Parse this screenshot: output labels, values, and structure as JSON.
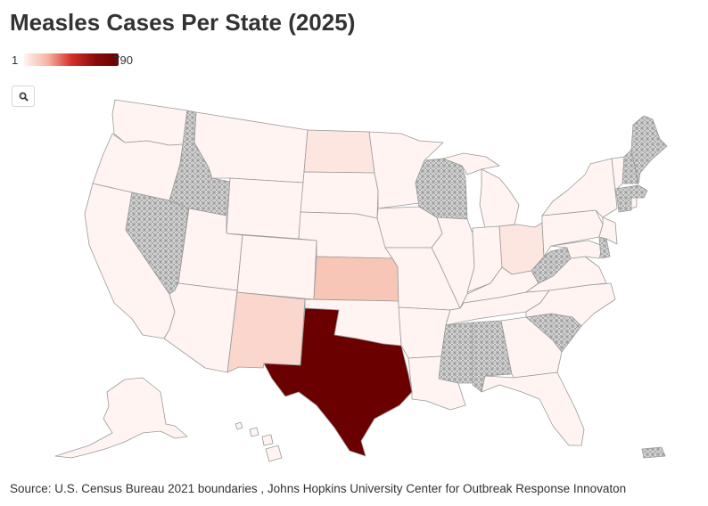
{
  "title": "Measles Cases Per State (2025)",
  "legend": {
    "min": "1",
    "max": "790"
  },
  "source": "Source: U.S. Census Bureau 2021 boundaries , Johns Hopkins University Center for Outbreak Response Innovaton",
  "colors": {
    "no_data_hatch": "#e4e4e4",
    "very_low": "#fff4f1",
    "low": "#fde6e0",
    "low_mid": "#fad6cc",
    "mid": "#f7c6b7",
    "max": "#6a0000"
  },
  "icons": {
    "search": "magnifier-icon"
  }
}
